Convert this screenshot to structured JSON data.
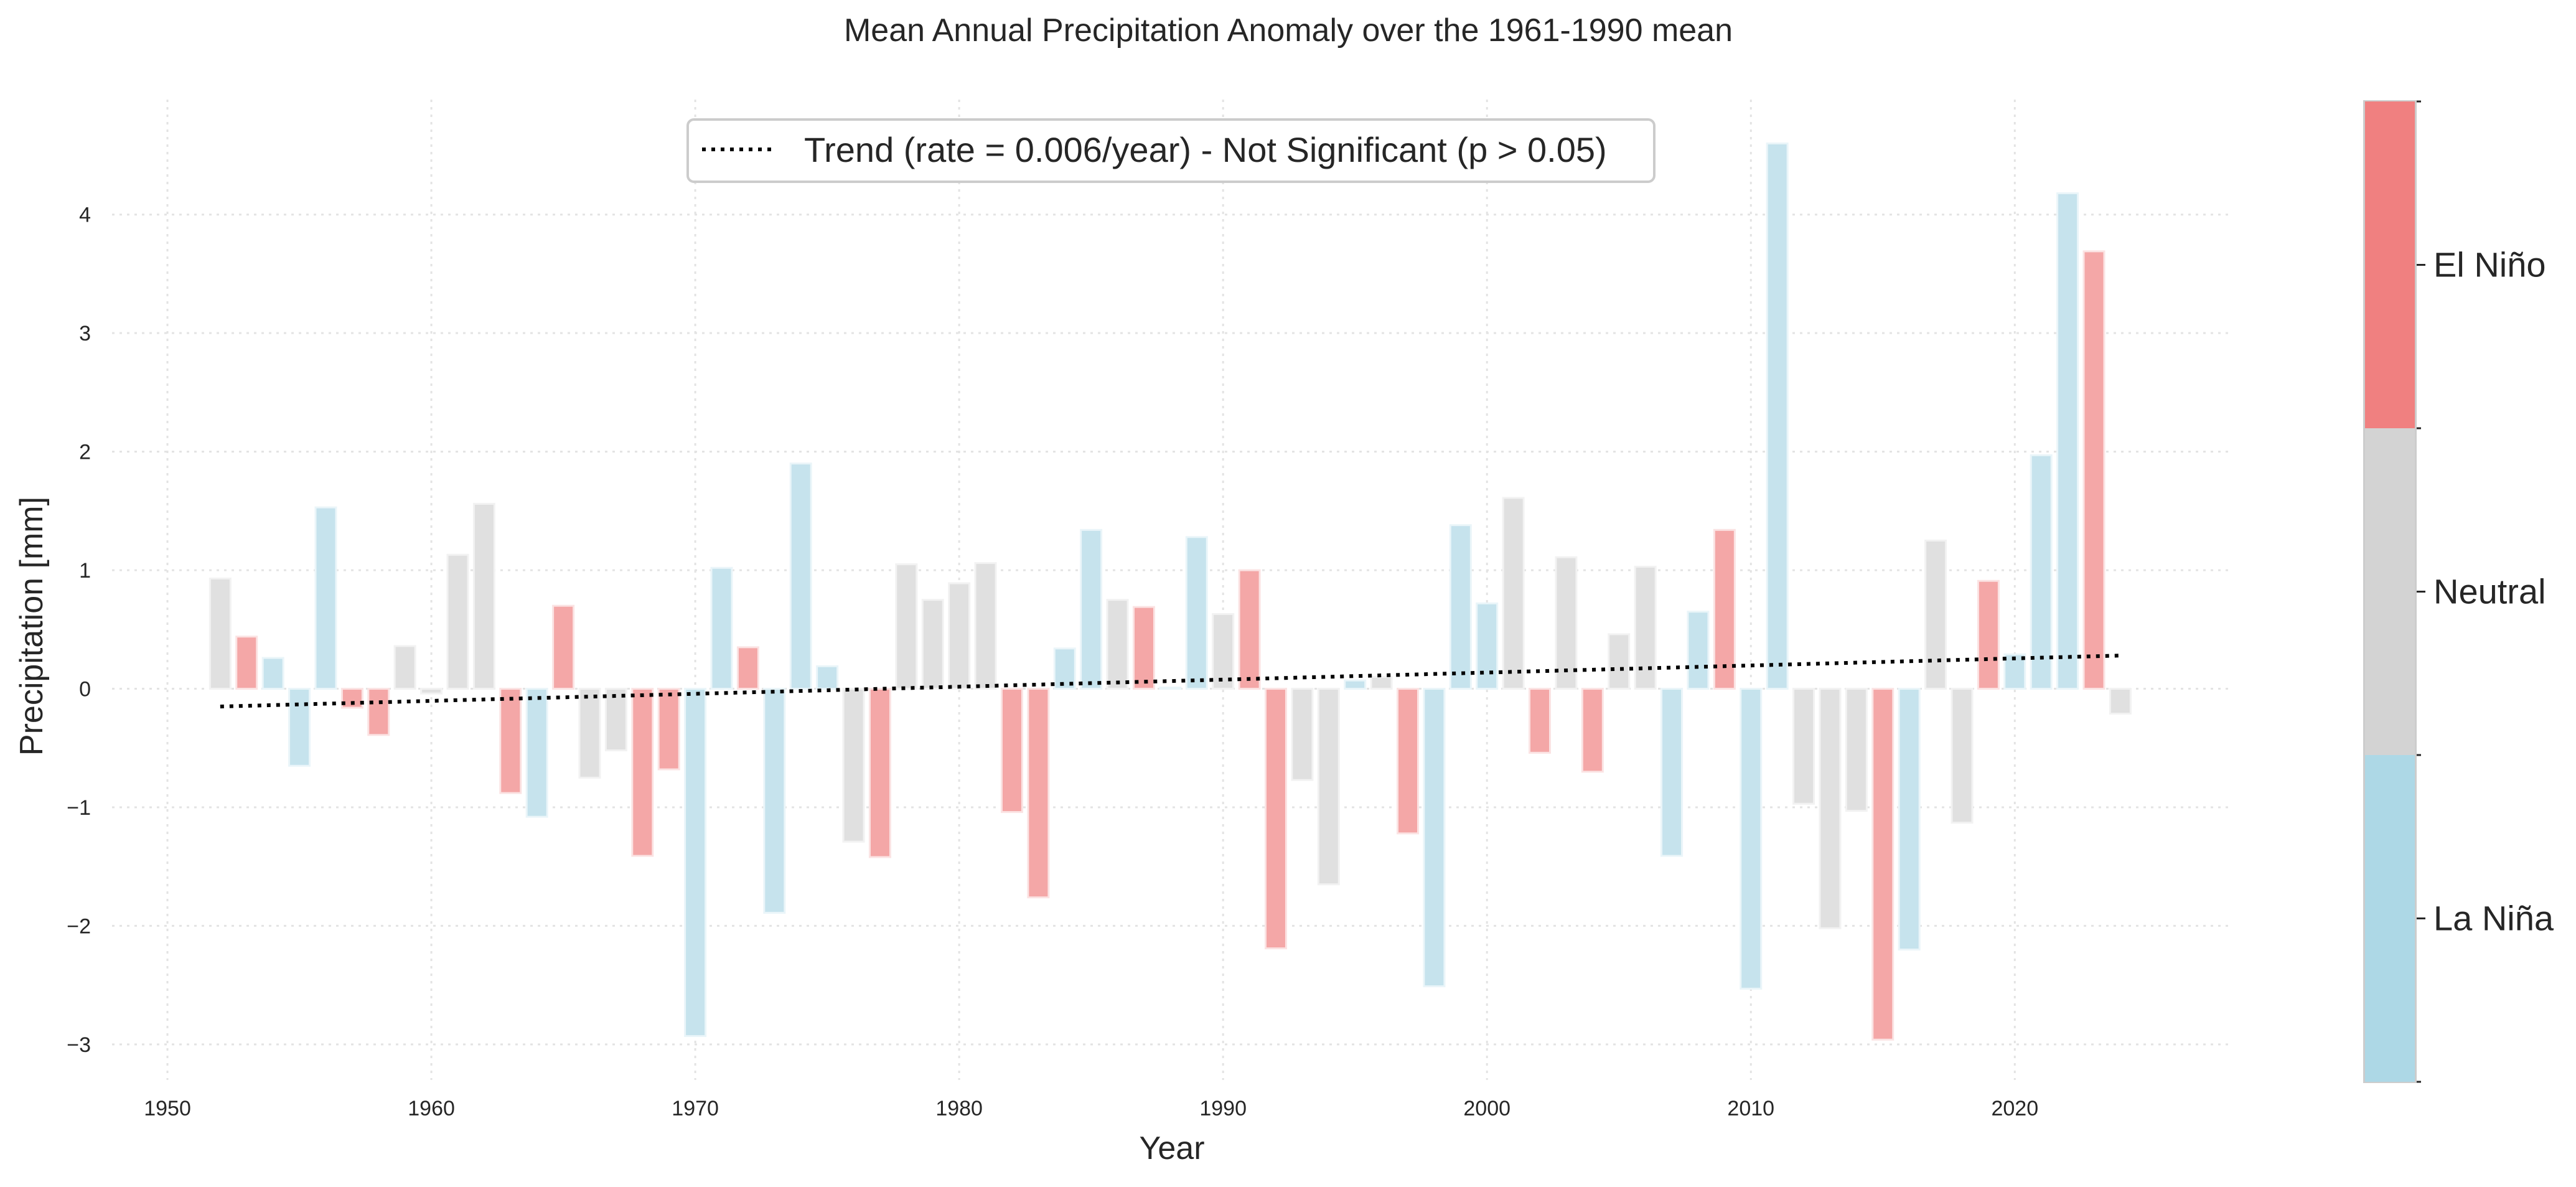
{
  "chart_data": {
    "type": "bar",
    "title": "Mean Annual Precipitation Anomaly over the 1961-1990 mean",
    "xlabel": "Year",
    "ylabel": "Precipitation [mm]",
    "xlim": [
      1947.9,
      2028.2
    ],
    "ylim": [
      -3.3,
      4.97
    ],
    "xticks": [
      1950,
      1960,
      1970,
      1980,
      1990,
      2000,
      2010,
      2020
    ],
    "yticks": [
      -3,
      -2,
      -1,
      0,
      1,
      2,
      3,
      4
    ],
    "ytick_labels": [
      "−3",
      "−2",
      "−1",
      "0",
      "1",
      "2",
      "3",
      "4"
    ],
    "grid": true,
    "legend": {
      "position": "top-center",
      "entries": [
        {
          "label": "Trend (rate = 0.006/year) - Not Significant (p > 0.05)",
          "style": "dotted",
          "color": "#000000"
        }
      ]
    },
    "trend": {
      "x": [
        1952,
        2024
      ],
      "y": [
        -0.15,
        0.28
      ],
      "rate_per_year": 0.006,
      "significant": false
    },
    "phase_colors": {
      "El Niño": "#f08080",
      "Neutral": "#d3d3d3",
      "La Niña": "#add8e6"
    },
    "colorbar": {
      "labels": [
        "La Niña",
        "Neutral",
        "El Niño"
      ],
      "colors": [
        "#add8e6",
        "#d3d3d3",
        "#f08080"
      ]
    },
    "bars": [
      {
        "year": 1952,
        "value": 0.93,
        "phase": "Neutral"
      },
      {
        "year": 1953,
        "value": 0.44,
        "phase": "El Niño"
      },
      {
        "year": 1954,
        "value": 0.26,
        "phase": "La Niña"
      },
      {
        "year": 1955,
        "value": -0.65,
        "phase": "La Niña"
      },
      {
        "year": 1956,
        "value": 1.53,
        "phase": "La Niña"
      },
      {
        "year": 1957,
        "value": -0.16,
        "phase": "El Niño"
      },
      {
        "year": 1958,
        "value": -0.39,
        "phase": "El Niño"
      },
      {
        "year": 1959,
        "value": 0.36,
        "phase": "Neutral"
      },
      {
        "year": 1960,
        "value": -0.04,
        "phase": "Neutral"
      },
      {
        "year": 1961,
        "value": 1.13,
        "phase": "Neutral"
      },
      {
        "year": 1962,
        "value": 1.56,
        "phase": "Neutral"
      },
      {
        "year": 1963,
        "value": -0.88,
        "phase": "El Niño"
      },
      {
        "year": 1964,
        "value": -1.08,
        "phase": "La Niña"
      },
      {
        "year": 1965,
        "value": 0.7,
        "phase": "El Niño"
      },
      {
        "year": 1966,
        "value": -0.75,
        "phase": "Neutral"
      },
      {
        "year": 1967,
        "value": -0.52,
        "phase": "Neutral"
      },
      {
        "year": 1968,
        "value": -1.41,
        "phase": "El Niño"
      },
      {
        "year": 1969,
        "value": -0.68,
        "phase": "El Niño"
      },
      {
        "year": 1970,
        "value": -2.93,
        "phase": "La Niña"
      },
      {
        "year": 1971,
        "value": 1.02,
        "phase": "La Niña"
      },
      {
        "year": 1972,
        "value": 0.35,
        "phase": "El Niño"
      },
      {
        "year": 1973,
        "value": -1.89,
        "phase": "La Niña"
      },
      {
        "year": 1974,
        "value": 1.9,
        "phase": "La Niña"
      },
      {
        "year": 1975,
        "value": 0.19,
        "phase": "La Niña"
      },
      {
        "year": 1976,
        "value": -1.29,
        "phase": "Neutral"
      },
      {
        "year": 1977,
        "value": -1.42,
        "phase": "El Niño"
      },
      {
        "year": 1978,
        "value": 1.05,
        "phase": "Neutral"
      },
      {
        "year": 1979,
        "value": 0.75,
        "phase": "Neutral"
      },
      {
        "year": 1980,
        "value": 0.89,
        "phase": "Neutral"
      },
      {
        "year": 1981,
        "value": 1.06,
        "phase": "Neutral"
      },
      {
        "year": 1982,
        "value": -1.04,
        "phase": "El Niño"
      },
      {
        "year": 1983,
        "value": -1.76,
        "phase": "El Niño"
      },
      {
        "year": 1984,
        "value": 0.34,
        "phase": "La Niña"
      },
      {
        "year": 1985,
        "value": 1.34,
        "phase": "La Niña"
      },
      {
        "year": 1986,
        "value": 0.75,
        "phase": "Neutral"
      },
      {
        "year": 1987,
        "value": 0.69,
        "phase": "El Niño"
      },
      {
        "year": 1988,
        "value": 0.01,
        "phase": "La Niña"
      },
      {
        "year": 1989,
        "value": 1.28,
        "phase": "La Niña"
      },
      {
        "year": 1990,
        "value": 0.63,
        "phase": "Neutral"
      },
      {
        "year": 1991,
        "value": 1.0,
        "phase": "El Niño"
      },
      {
        "year": 1992,
        "value": -2.19,
        "phase": "El Niño"
      },
      {
        "year": 1993,
        "value": -0.77,
        "phase": "Neutral"
      },
      {
        "year": 1994,
        "value": -1.65,
        "phase": "Neutral"
      },
      {
        "year": 1995,
        "value": 0.07,
        "phase": "La Niña"
      },
      {
        "year": 1996,
        "value": 0.1,
        "phase": "Neutral"
      },
      {
        "year": 1997,
        "value": -1.22,
        "phase": "El Niño"
      },
      {
        "year": 1998,
        "value": -2.51,
        "phase": "La Niña"
      },
      {
        "year": 1999,
        "value": 1.38,
        "phase": "La Niña"
      },
      {
        "year": 2000,
        "value": 0.72,
        "phase": "La Niña"
      },
      {
        "year": 2001,
        "value": 1.61,
        "phase": "Neutral"
      },
      {
        "year": 2002,
        "value": -0.54,
        "phase": "El Niño"
      },
      {
        "year": 2003,
        "value": 1.11,
        "phase": "Neutral"
      },
      {
        "year": 2004,
        "value": -0.7,
        "phase": "El Niño"
      },
      {
        "year": 2005,
        "value": 0.46,
        "phase": "Neutral"
      },
      {
        "year": 2006,
        "value": 1.03,
        "phase": "Neutral"
      },
      {
        "year": 2007,
        "value": -1.41,
        "phase": "La Niña"
      },
      {
        "year": 2008,
        "value": 0.65,
        "phase": "La Niña"
      },
      {
        "year": 2009,
        "value": 1.34,
        "phase": "El Niño"
      },
      {
        "year": 2010,
        "value": -2.53,
        "phase": "La Niña"
      },
      {
        "year": 2011,
        "value": 4.6,
        "phase": "La Niña"
      },
      {
        "year": 2012,
        "value": -0.97,
        "phase": "Neutral"
      },
      {
        "year": 2013,
        "value": -2.02,
        "phase": "Neutral"
      },
      {
        "year": 2014,
        "value": -1.03,
        "phase": "Neutral"
      },
      {
        "year": 2015,
        "value": -2.96,
        "phase": "El Niño"
      },
      {
        "year": 2016,
        "value": -2.2,
        "phase": "La Niña"
      },
      {
        "year": 2017,
        "value": 1.25,
        "phase": "Neutral"
      },
      {
        "year": 2018,
        "value": -1.13,
        "phase": "Neutral"
      },
      {
        "year": 2019,
        "value": 0.91,
        "phase": "El Niño"
      },
      {
        "year": 2020,
        "value": 0.29,
        "phase": "La Niña"
      },
      {
        "year": 2021,
        "value": 1.97,
        "phase": "La Niña"
      },
      {
        "year": 2022,
        "value": 4.18,
        "phase": "La Niña"
      },
      {
        "year": 2023,
        "value": 3.69,
        "phase": "El Niño"
      },
      {
        "year": 2024,
        "value": -0.21,
        "phase": "Neutral"
      }
    ]
  }
}
